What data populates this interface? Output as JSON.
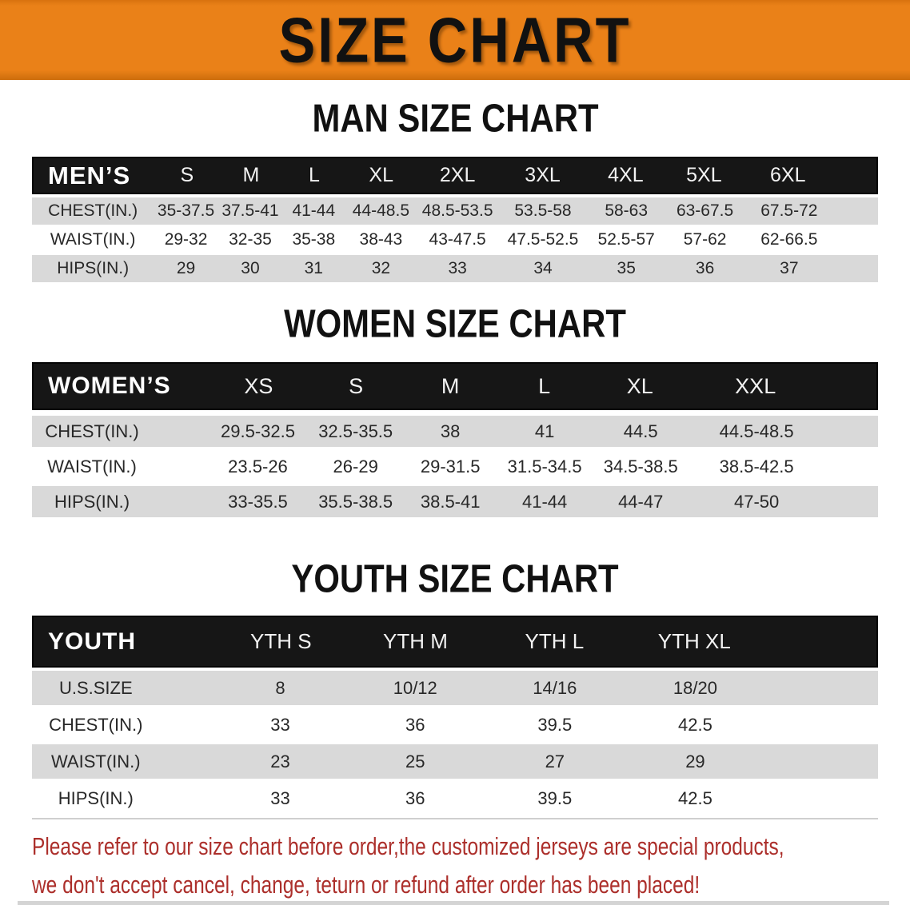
{
  "banner": {
    "title": "SIZE CHART",
    "bg_color": "#ea8118",
    "text_color": "#111111"
  },
  "sections": [
    {
      "heading": "MAN SIZE CHART",
      "table": {
        "label": "MEN’S",
        "sizes": [
          "S",
          "M",
          "L",
          "XL",
          "2XL",
          "3XL",
          "4XL",
          "5XL",
          "6XL"
        ],
        "rows": [
          {
            "label": "CHEST(IN.)",
            "values": [
              "35-37.5",
              "37.5-41",
              "41-44",
              "44-48.5",
              "48.5-53.5",
              "53.5-58",
              "58-63",
              "63-67.5",
              "67.5-72"
            ]
          },
          {
            "label": "WAIST(IN.)",
            "values": [
              "29-32",
              "32-35",
              "35-38",
              "38-43",
              "43-47.5",
              "47.5-52.5",
              "52.5-57",
              "57-62",
              "62-66.5"
            ]
          },
          {
            "label": "HIPS(IN.)",
            "values": [
              "29",
              "30",
              "31",
              "32",
              "33",
              "34",
              "35",
              "36",
              "37"
            ]
          }
        ]
      }
    },
    {
      "heading": "WOMEN SIZE CHART",
      "table": {
        "label": "WOMEN’S",
        "sizes": [
          "XS",
          "S",
          "M",
          "L",
          "XL",
          "XXL"
        ],
        "rows": [
          {
            "label": "CHEST(IN.)",
            "values": [
              "29.5-32.5",
              "32.5-35.5",
              "38",
              "41",
              "44.5",
              "44.5-48.5"
            ]
          },
          {
            "label": "WAIST(IN.)",
            "values": [
              "23.5-26",
              "26-29",
              "29-31.5",
              "31.5-34.5",
              "34.5-38.5",
              "38.5-42.5"
            ]
          },
          {
            "label": "HIPS(IN.)",
            "values": [
              "33-35.5",
              "35.5-38.5",
              "38.5-41",
              "41-44",
              "44-47",
              "47-50"
            ]
          }
        ]
      }
    },
    {
      "heading": "YOUTH SIZE CHART",
      "table": {
        "label": "YOUTH",
        "sizes": [
          "YTH S",
          "YTH M",
          "YTH L",
          "YTH XL"
        ],
        "rows": [
          {
            "label": "U.S.SIZE",
            "values": [
              "8",
              "10/12",
              "14/16",
              "18/20"
            ]
          },
          {
            "label": "CHEST(IN.)",
            "values": [
              "33",
              "36",
              "39.5",
              "42.5"
            ]
          },
          {
            "label": "WAIST(IN.)",
            "values": [
              "23",
              "25",
              "27",
              "29"
            ]
          },
          {
            "label": "HIPS(IN.)",
            "values": [
              "33",
              "36",
              "39.5",
              "42.5"
            ]
          }
        ]
      }
    }
  ],
  "footer": {
    "line1": "Please refer to our size chart before order,the customized jerseys are special products,",
    "line2": "we don't accept cancel, change, teturn or refund after order has been placed!",
    "text_color": "#ac2f2b"
  },
  "colors": {
    "header_bar": "#161616",
    "stripe_gray": "#d9d9d9",
    "banner_orange": "#ea8118"
  }
}
